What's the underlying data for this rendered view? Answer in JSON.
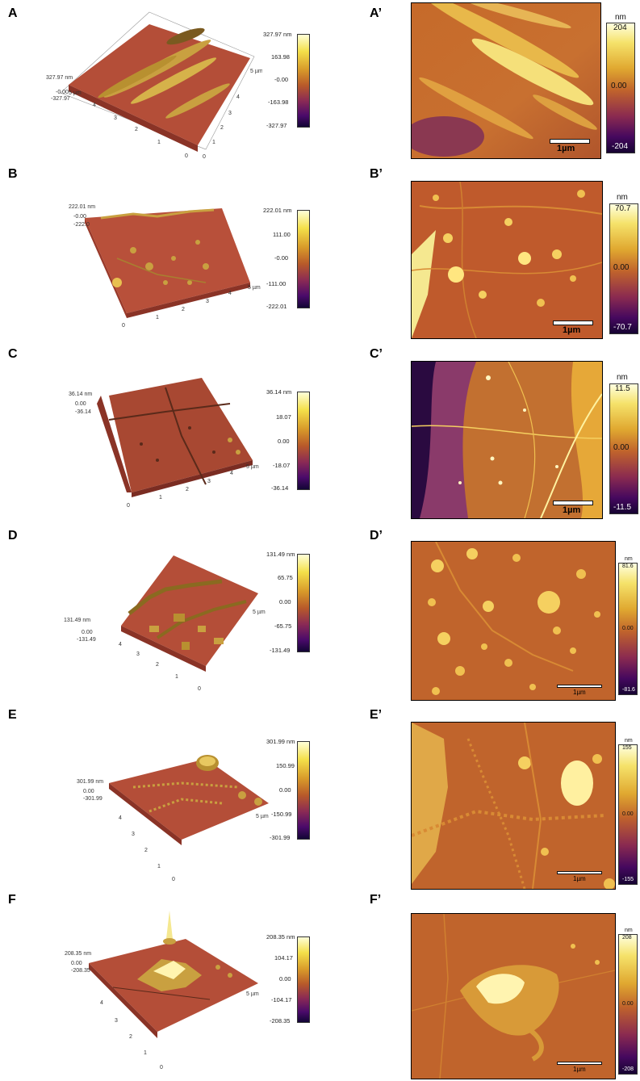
{
  "panels": [
    {
      "left": "A",
      "right": "A’",
      "left_cbar": [
        "327.97 nm",
        "163.98",
        "-0.00",
        "-163.98",
        "-327.97"
      ],
      "left_z": [
        "327.97 nm",
        "-0.00",
        "-327.97"
      ],
      "right_unit": "nm",
      "right_cbar": [
        "204",
        "0.00",
        "-204"
      ],
      "scale": "1µm"
    },
    {
      "left": "B",
      "right": "B’",
      "left_cbar": [
        "222.01 nm",
        "111.00",
        "-0.00",
        "-111.00",
        "-222.01"
      ],
      "left_z": [
        "222.01 nm",
        "-0.00",
        "-222.0"
      ],
      "right_unit": "nm",
      "right_cbar": [
        "70.7",
        "0.00",
        "-70.7"
      ],
      "scale": "1µm"
    },
    {
      "left": "C",
      "right": "C’",
      "left_cbar": [
        "36.14 nm",
        "18.07",
        "0.00",
        "-18.07",
        "-36.14"
      ],
      "left_z": [
        "36.14 nm",
        "0.00",
        "-36.14"
      ],
      "right_unit": "nm",
      "right_cbar": [
        "11.5",
        "0.00",
        "-11.5"
      ],
      "scale": "1µm"
    },
    {
      "left": "D",
      "right": "D’",
      "left_cbar": [
        "131.49 nm",
        "65.75",
        "0.00",
        "-65.75",
        "-131.49"
      ],
      "left_z": [
        "131.49 nm",
        "0.00",
        "-131.49"
      ],
      "right_unit": "nm",
      "right_cbar": [
        "81.6",
        "0.00",
        "-81.6"
      ],
      "scale": "1µm"
    },
    {
      "left": "E",
      "right": "E’",
      "left_cbar": [
        "301.99 nm",
        "150.99",
        "0.00",
        "-150.99",
        "-301.99"
      ],
      "left_z": [
        "301.99 nm",
        "0.00",
        "-301.99"
      ],
      "right_unit": "nm",
      "right_cbar": [
        "155",
        "0.00",
        "-155"
      ],
      "scale": "1µm"
    },
    {
      "left": "F",
      "right": "F’",
      "left_cbar": [
        "208.35 nm",
        "104.17",
        "0.00",
        "-104.17",
        "-208.35"
      ],
      "left_z": [
        "208.35 nm",
        "0.00",
        "-208.35"
      ],
      "right_unit": "nm",
      "right_cbar": [
        "208",
        "0.00",
        "-208"
      ],
      "scale": "1µm"
    }
  ],
  "axis_ticks": [
    "0",
    "1",
    "2",
    "3",
    "4",
    "5 µm"
  ],
  "palette": {
    "surface": "#b8503a",
    "surface_dark": "#8a3326",
    "feature": "#d8b040",
    "highlight": "#fff4b0"
  }
}
